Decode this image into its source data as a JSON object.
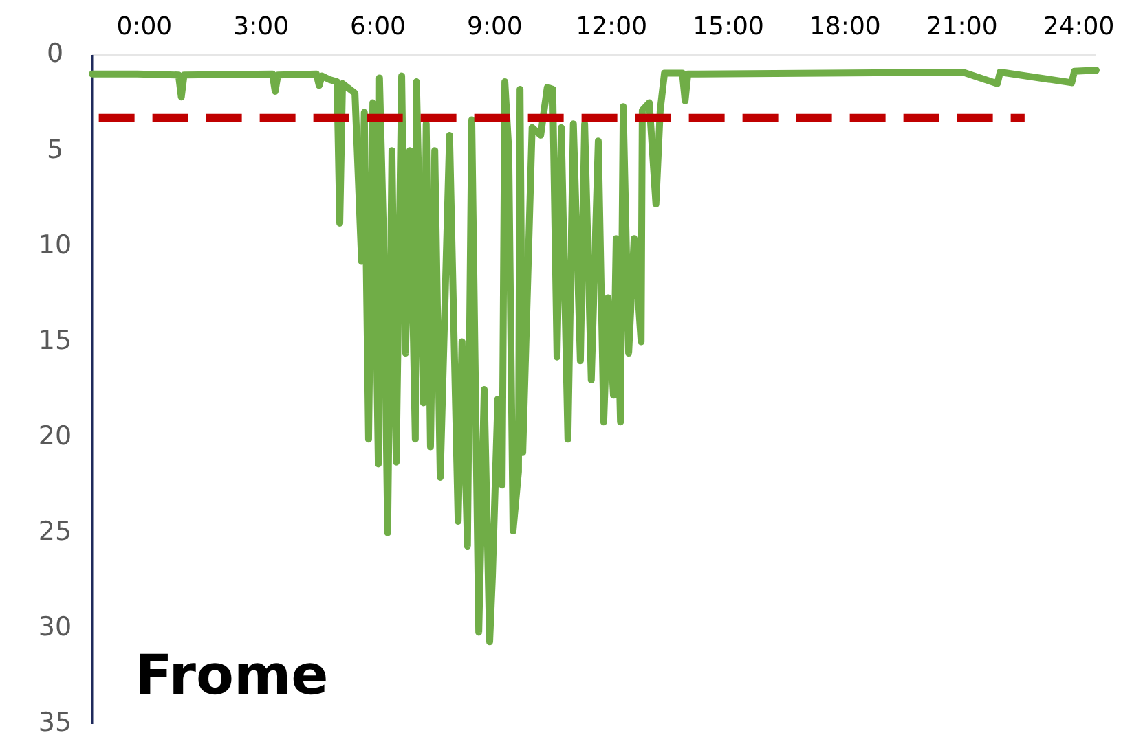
{
  "chart_data": {
    "type": "line",
    "title": "Frome",
    "xlim": [
      -1.34,
      24.45
    ],
    "ylim": [
      35,
      0
    ],
    "xticks": [
      {
        "value": 0,
        "label": "0:00"
      },
      {
        "value": 3,
        "label": "3:00"
      },
      {
        "value": 6,
        "label": "6:00"
      },
      {
        "value": 9,
        "label": "9:00"
      },
      {
        "value": 12,
        "label": "12:00"
      },
      {
        "value": 15,
        "label": "15:00"
      },
      {
        "value": 18,
        "label": "18:00"
      },
      {
        "value": 21,
        "label": "21:00"
      },
      {
        "value": 24,
        "label": "24:00"
      }
    ],
    "yticks": [
      0,
      5,
      10,
      15,
      20,
      25,
      30,
      35
    ],
    "grid": false,
    "marker": "none",
    "series": [
      {
        "color": "#70ad47",
        "line_style": "solid",
        "x": [
          -1.34,
          -0.18,
          0.88,
          0.95,
          1.02,
          3.29,
          3.36,
          3.43,
          4.42,
          4.49,
          4.56,
          4.77,
          4.95,
          5.02,
          5.09,
          5.41,
          5.58,
          5.65,
          5.76,
          5.87,
          6.01,
          6.04,
          6.15,
          6.25,
          6.36,
          6.47,
          6.61,
          6.71,
          6.82,
          6.96,
          6.99,
          7.17,
          7.24,
          7.35,
          7.46,
          7.6,
          7.84,
          8.06,
          8.16,
          8.3,
          8.41,
          8.59,
          8.73,
          8.87,
          8.94,
          9.08,
          9.19,
          9.26,
          9.36,
          9.47,
          9.61,
          9.65,
          9.72,
          9.96,
          10.18,
          10.35,
          10.49,
          10.6,
          10.71,
          10.88,
          11.02,
          11.2,
          11.31,
          11.48,
          11.66,
          11.8,
          11.91,
          12.05,
          12.12,
          12.23,
          12.3,
          12.44,
          12.58,
          12.76,
          12.79,
          12.97,
          13.14,
          13.25,
          13.36,
          13.82,
          13.89,
          13.96,
          17.49,
          21.02,
          21.91,
          21.98,
          23.82,
          23.89,
          24.45
        ],
        "values": [
          1.0,
          1.0,
          1.05,
          2.2,
          1.05,
          1.0,
          1.9,
          1.05,
          1.0,
          1.6,
          1.1,
          1.3,
          1.4,
          8.8,
          1.5,
          2.0,
          10.8,
          3.0,
          20.1,
          2.5,
          21.4,
          1.2,
          10,
          25,
          5,
          21.3,
          1.1,
          15.6,
          5,
          20.1,
          1.4,
          18.2,
          3.6,
          20.5,
          5,
          22.1,
          4.2,
          24.4,
          15,
          25.7,
          3.4,
          30.2,
          17.5,
          30.7,
          27.3,
          18,
          22.5,
          1.4,
          5,
          24.9,
          21.8,
          1.8,
          20.8,
          3.8,
          4.2,
          1.7,
          1.8,
          15.8,
          3.8,
          20.1,
          3.6,
          16,
          3.6,
          17,
          4.5,
          19.2,
          12.7,
          17.8,
          9.6,
          19.2,
          2.7,
          15.6,
          9.6,
          15,
          2.9,
          2.5,
          7.8,
          2.9,
          0.95,
          0.95,
          2.4,
          1.0,
          0.95,
          0.9,
          1.5,
          0.9,
          1.45,
          0.85,
          0.8
        ]
      },
      {
        "color": "#c00000",
        "line_style": "dashed",
        "x": [
          -1.17,
          22.61
        ],
        "values": [
          3.3,
          3.3
        ]
      }
    ]
  }
}
